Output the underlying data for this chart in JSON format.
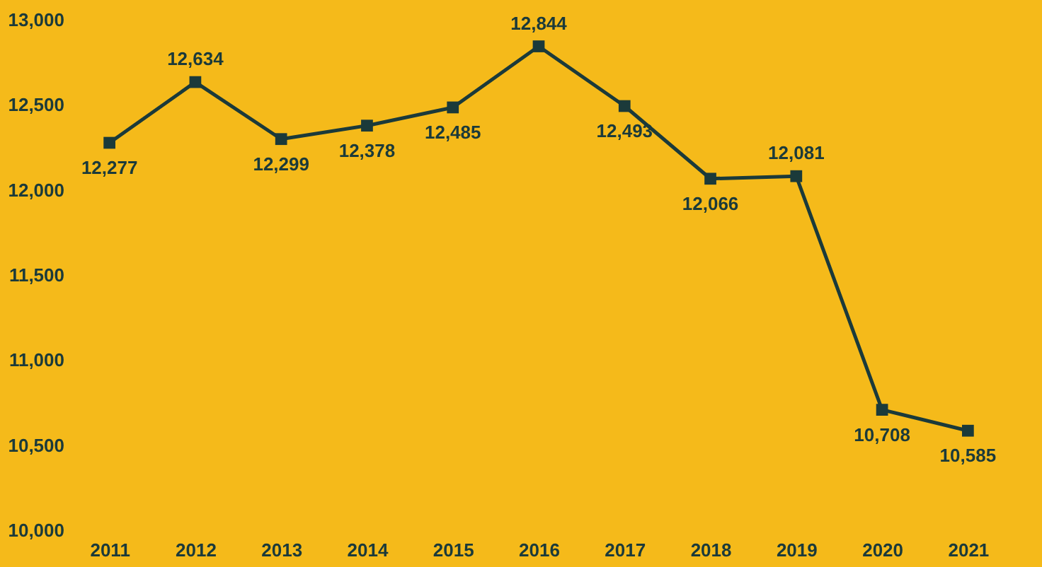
{
  "chart_data": {
    "type": "line",
    "categories": [
      "2011",
      "2012",
      "2013",
      "2014",
      "2015",
      "2016",
      "2017",
      "2018",
      "2019",
      "2020",
      "2021"
    ],
    "series": [
      {
        "color": "#1b3a3a",
        "values": [
          12277,
          12634,
          12299,
          12378,
          12485,
          12844,
          12493,
          12066,
          12081,
          10708,
          10585
        ],
        "value_labels": [
          "12,277",
          "12,634",
          "12,299",
          "12,378",
          "12,485",
          "12,844",
          "12,493",
          "12,066",
          "12,081",
          "10,708",
          "10,585"
        ]
      }
    ],
    "ylim": [
      10000,
      13000
    ],
    "yticks": [
      {
        "value": 10000,
        "label": "10,000"
      },
      {
        "value": 10500,
        "label": "10,500"
      },
      {
        "value": 11000,
        "label": "11,000"
      },
      {
        "value": 11500,
        "label": "11,500"
      },
      {
        "value": 12000,
        "label": "12,000"
      },
      {
        "value": 12500,
        "label": "12,500"
      },
      {
        "value": 13000,
        "label": "13,000"
      }
    ],
    "marker": "square",
    "line_style": "solid",
    "grid": false
  }
}
